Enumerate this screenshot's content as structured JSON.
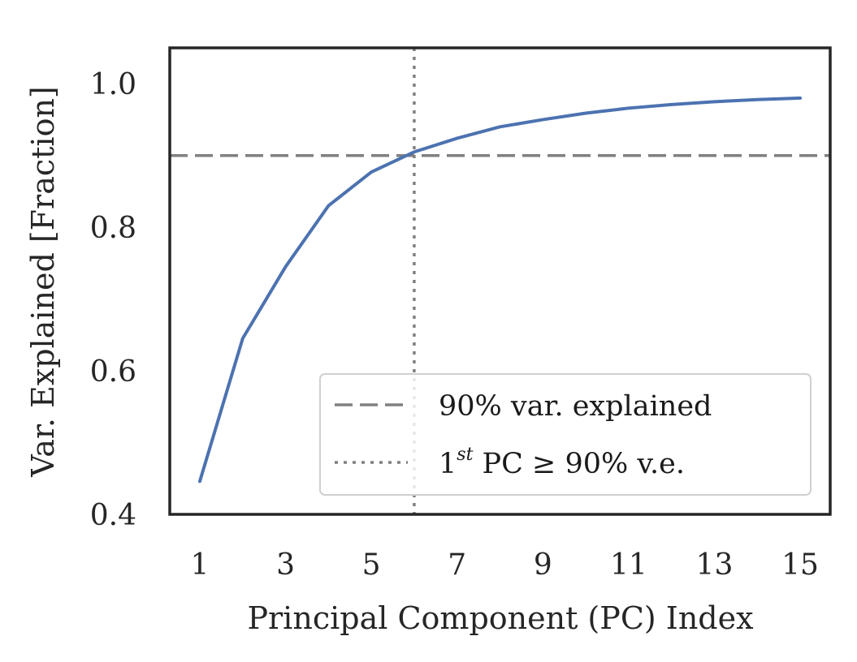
{
  "chart_data": {
    "type": "line",
    "title": "",
    "xlabel": "Principal Component (PC) Index",
    "ylabel": "Var. Explained [Fraction]",
    "x": [
      1,
      2,
      3,
      4,
      5,
      6,
      7,
      8,
      9,
      10,
      11,
      12,
      13,
      14,
      15
    ],
    "series": [
      {
        "values": [
          0.446,
          0.645,
          0.745,
          0.83,
          0.877,
          0.905,
          0.924,
          0.94,
          0.95,
          0.959,
          0.966,
          0.971,
          0.975,
          0.978,
          0.98
        ],
        "color": "#4c72b0"
      }
    ],
    "xlim": [
      0.3,
      15.7
    ],
    "ylim": [
      0.4,
      1.05
    ],
    "xticks": [
      1,
      3,
      5,
      7,
      9,
      11,
      13,
      15
    ],
    "yticks": [
      0.4,
      0.6,
      0.8,
      1.0
    ],
    "ytick_labels": [
      "0.4",
      "0.6",
      "0.8",
      "1.0"
    ],
    "grid": false,
    "reference_lines": [
      {
        "orientation": "horizontal",
        "value": 0.9,
        "style": "dashed",
        "color": "#808080"
      },
      {
        "orientation": "vertical",
        "value": 6,
        "style": "dotted",
        "color": "#808080"
      }
    ],
    "legend": {
      "placement": "lower-right",
      "entries": [
        {
          "label": "90% var. explained",
          "style": "dashed"
        },
        {
          "label_prefix": "1",
          "label_sup": "st",
          "label_suffix": " PC ≥ 90% v.e.",
          "style": "dotted"
        }
      ]
    }
  }
}
